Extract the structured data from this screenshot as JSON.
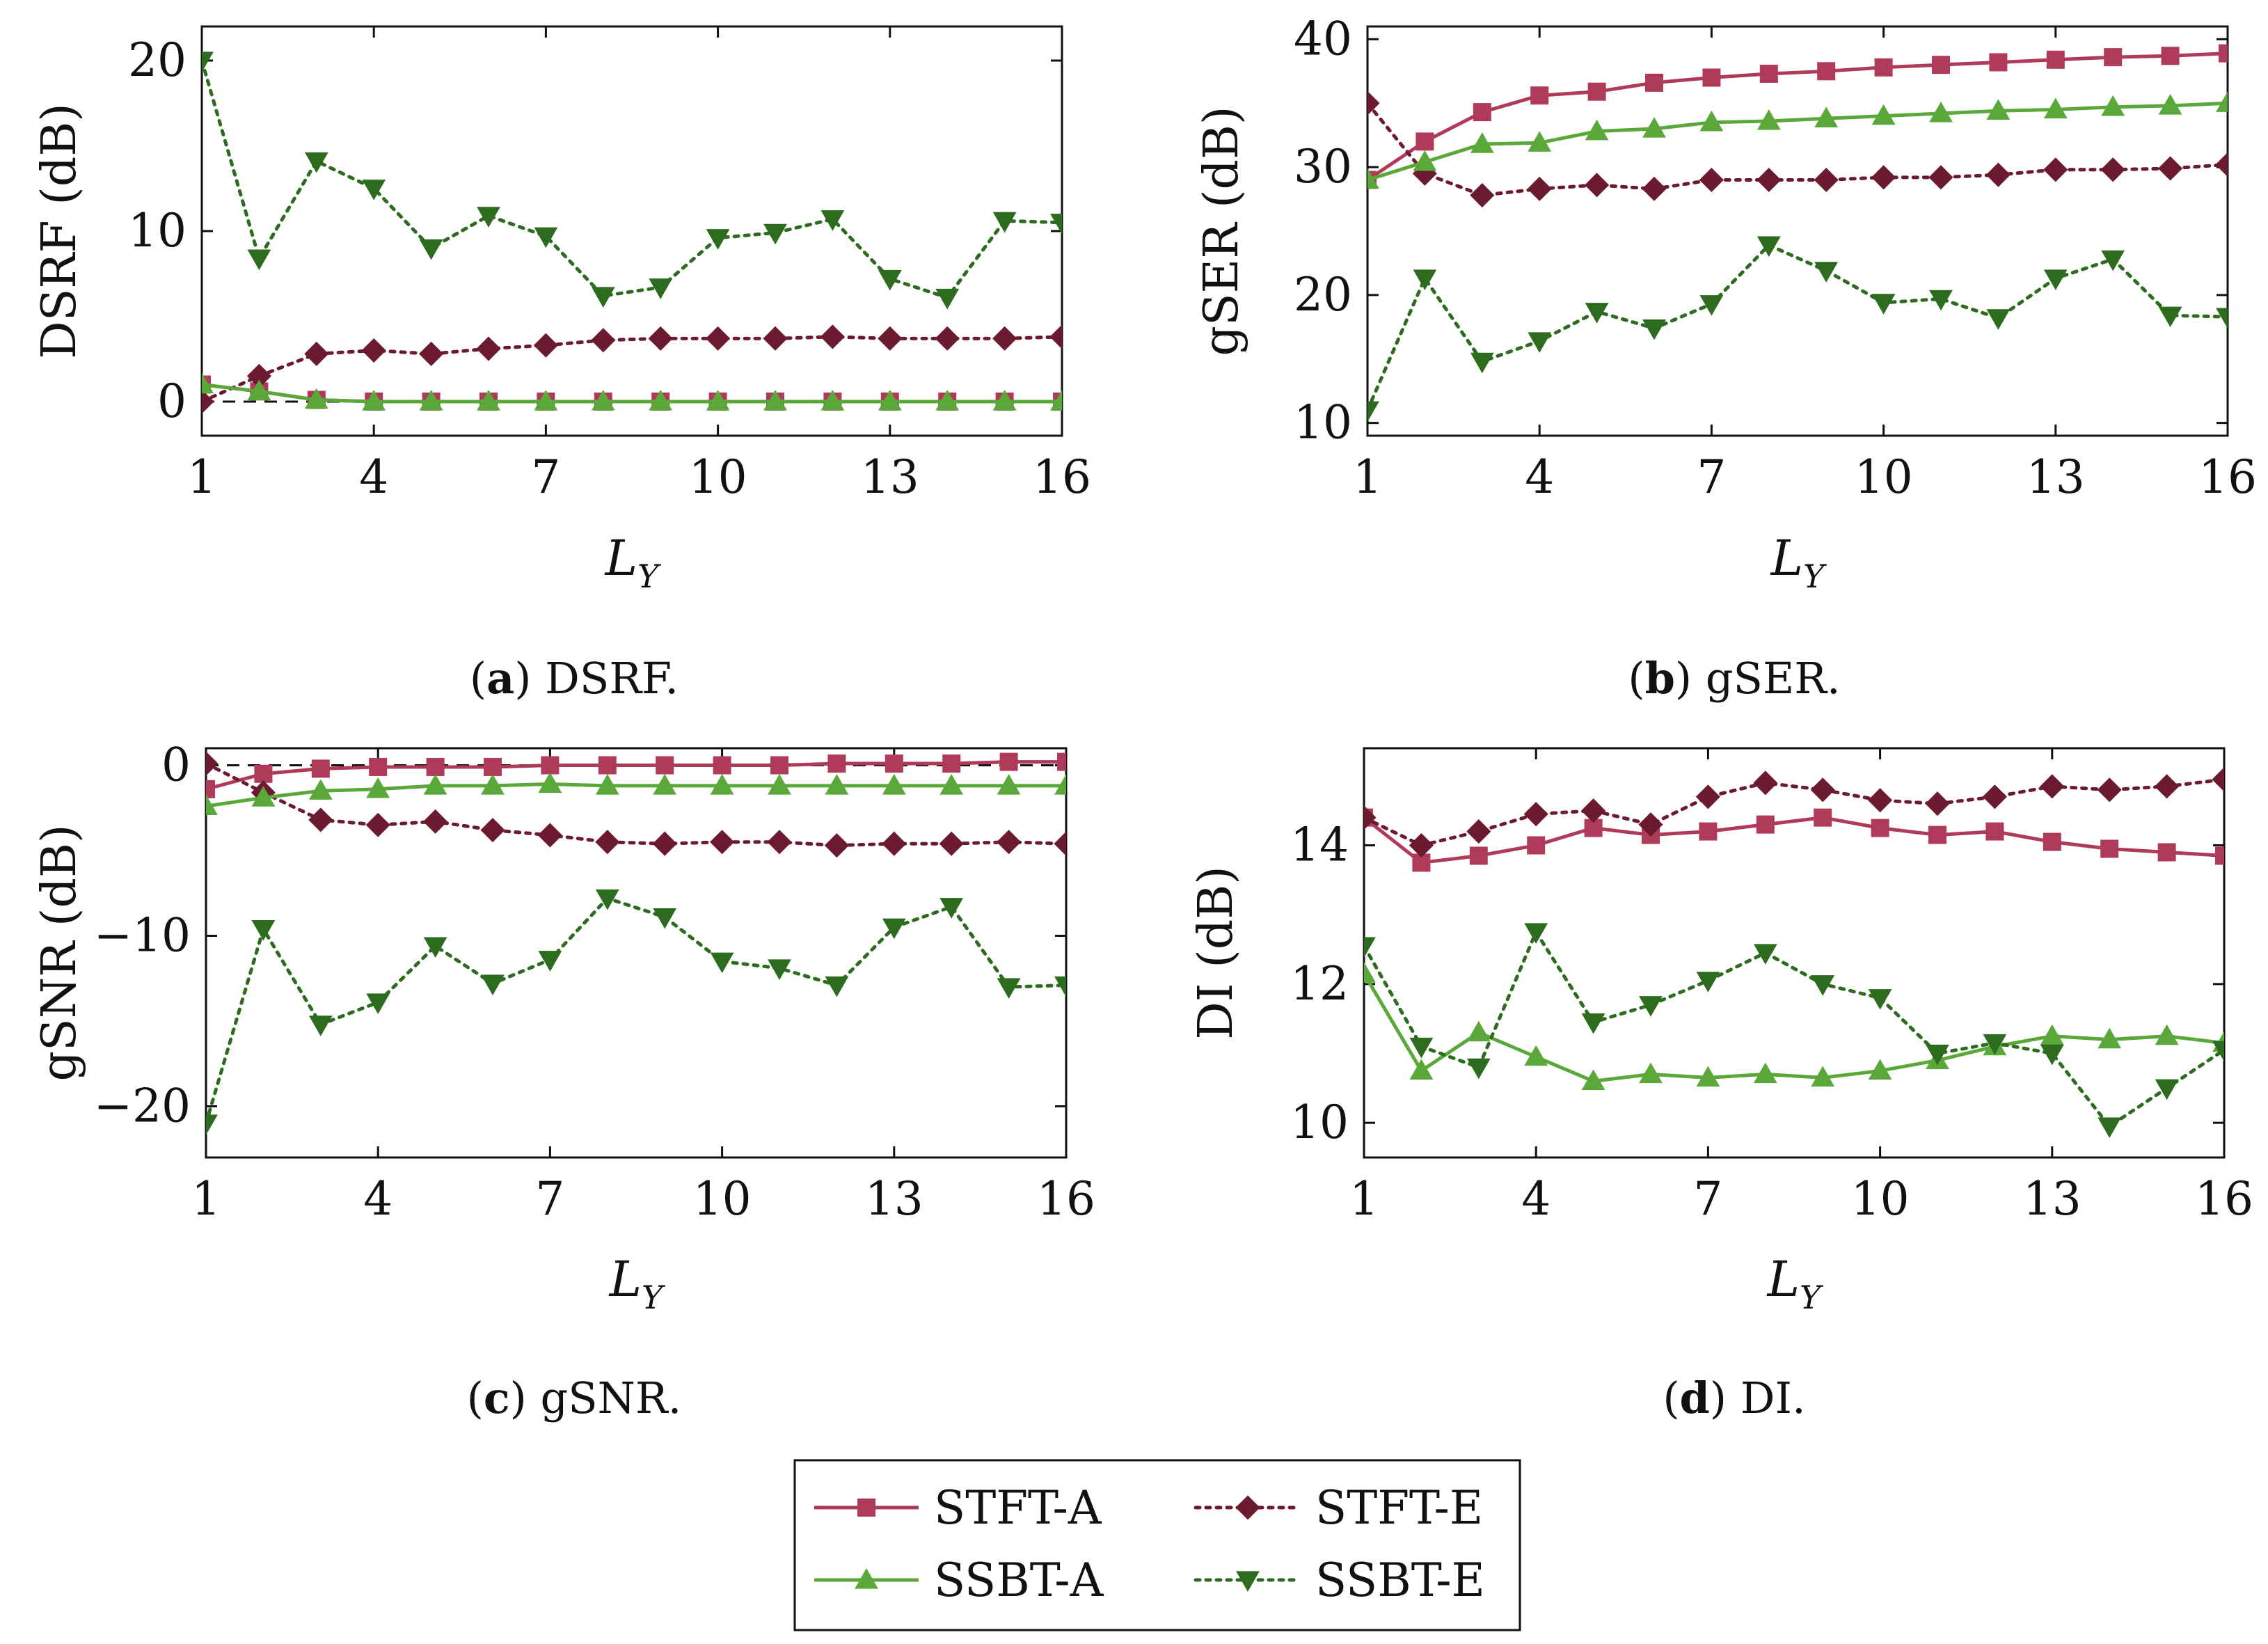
{
  "colors": {
    "stft_a": "#b03a59",
    "stft_e": "#6b1a30",
    "ssbt_a": "#5aa83a",
    "ssbt_e": "#2d6b1f"
  },
  "legend": {
    "items": [
      {
        "key": "stft_a",
        "label": "STFT-A"
      },
      {
        "key": "stft_e",
        "label": "STFT-E"
      },
      {
        "key": "ssbt_a",
        "label": "SSBT-A"
      },
      {
        "key": "ssbt_e",
        "label": "SSBT-E"
      }
    ]
  },
  "chart_data": [
    {
      "type": "line",
      "panel": "a",
      "caption_letter": "a",
      "caption_text": ") DSRF.",
      "caption_open": "(",
      "ylabel": "DSRF (dB)",
      "xlabel_main": "L",
      "xlabel_sub": "Y",
      "xlim": [
        1,
        16
      ],
      "ylim": [
        -2,
        22
      ],
      "xticks": [
        1,
        4,
        7,
        10,
        13,
        16
      ],
      "xtick_labels": [
        "1",
        "4",
        "7",
        "10",
        "13",
        "16"
      ],
      "yticks": [
        0,
        10,
        20
      ],
      "ytick_labels": [
        "0",
        "10",
        "20"
      ],
      "reference_line": 0,
      "x": [
        1,
        2,
        3,
        4,
        5,
        6,
        7,
        8,
        9,
        10,
        11,
        12,
        13,
        14,
        15,
        16
      ],
      "series": [
        {
          "name": "STFT-A",
          "key": "stft_a",
          "marker": "square",
          "style": "solid",
          "values": [
            1,
            0.6,
            0.1,
            0,
            0,
            0,
            0,
            0,
            0,
            0,
            0,
            0,
            0,
            0,
            0,
            0
          ]
        },
        {
          "name": "STFT-E",
          "key": "stft_e",
          "marker": "diamond",
          "style": "dotted",
          "values": [
            0,
            1.5,
            2.8,
            3,
            2.8,
            3.1,
            3.3,
            3.6,
            3.7,
            3.7,
            3.7,
            3.8,
            3.7,
            3.7,
            3.7,
            3.8
          ]
        },
        {
          "name": "SSBT-A",
          "key": "ssbt_a",
          "marker": "triangle-up",
          "style": "solid",
          "values": [
            1,
            0.6,
            0.1,
            0,
            0,
            0,
            0,
            0,
            0,
            0,
            0,
            0,
            0,
            0,
            0,
            0
          ]
        },
        {
          "name": "SSBT-E",
          "key": "ssbt_e",
          "marker": "triangle-down",
          "style": "dotted",
          "values": [
            20,
            8.4,
            14.1,
            12.5,
            9,
            10.9,
            9.7,
            6.2,
            6.7,
            9.6,
            9.9,
            10.7,
            7.2,
            6.1,
            10.6,
            10.5
          ]
        }
      ]
    },
    {
      "type": "line",
      "panel": "b",
      "caption_letter": "b",
      "caption_text": ") gSER.",
      "caption_open": "(",
      "ylabel": "gSER (dB)",
      "xlabel_main": "L",
      "xlabel_sub": "Y",
      "xlim": [
        1,
        16
      ],
      "ylim": [
        9,
        41
      ],
      "xticks": [
        1,
        4,
        7,
        10,
        13,
        16
      ],
      "xtick_labels": [
        "1",
        "4",
        "7",
        "10",
        "13",
        "16"
      ],
      "yticks": [
        10,
        20,
        30,
        40
      ],
      "ytick_labels": [
        "10",
        "20",
        "30",
        "40"
      ],
      "x": [
        1,
        2,
        3,
        4,
        5,
        6,
        7,
        8,
        9,
        10,
        11,
        12,
        13,
        14,
        15,
        16
      ],
      "series": [
        {
          "name": "STFT-A",
          "key": "stft_a",
          "marker": "square",
          "style": "solid",
          "values": [
            29,
            32,
            34.3,
            35.6,
            35.9,
            36.6,
            37,
            37.3,
            37.5,
            37.8,
            38,
            38.2,
            38.4,
            38.6,
            38.7,
            38.9
          ]
        },
        {
          "name": "STFT-E",
          "key": "stft_e",
          "marker": "diamond",
          "style": "dotted",
          "values": [
            35,
            29.5,
            27.8,
            28.3,
            28.6,
            28.3,
            29,
            29,
            29,
            29.2,
            29.2,
            29.4,
            29.8,
            29.8,
            29.9,
            30.2
          ]
        },
        {
          "name": "SSBT-A",
          "key": "ssbt_a",
          "marker": "triangle-up",
          "style": "solid",
          "values": [
            29,
            30.4,
            31.8,
            31.9,
            32.8,
            33,
            33.5,
            33.6,
            33.8,
            34,
            34.2,
            34.4,
            34.5,
            34.7,
            34.8,
            35
          ]
        },
        {
          "name": "SSBT-E",
          "key": "ssbt_e",
          "marker": "triangle-down",
          "style": "dotted",
          "values": [
            11,
            21.3,
            14.8,
            16.4,
            18.7,
            17.4,
            19.3,
            23.9,
            21.9,
            19.4,
            19.7,
            18.2,
            21.3,
            22.8,
            18.4,
            18.3
          ]
        }
      ]
    },
    {
      "type": "line",
      "panel": "c",
      "caption_letter": "c",
      "caption_text": ") gSNR.",
      "caption_open": "(",
      "ylabel": "gSNR (dB)",
      "xlabel_main": "L",
      "xlabel_sub": "Y",
      "xlim": [
        1,
        16
      ],
      "ylim": [
        -23,
        1
      ],
      "xticks": [
        1,
        4,
        7,
        10,
        13,
        16
      ],
      "xtick_labels": [
        "1",
        "4",
        "7",
        "10",
        "13",
        "16"
      ],
      "yticks": [
        -20,
        -10,
        0
      ],
      "ytick_labels": [
        "−20",
        "−10",
        "0"
      ],
      "reference_line": 0,
      "x": [
        1,
        2,
        3,
        4,
        5,
        6,
        7,
        8,
        9,
        10,
        11,
        12,
        13,
        14,
        15,
        16
      ],
      "series": [
        {
          "name": "STFT-A",
          "key": "stft_a",
          "marker": "square",
          "style": "solid",
          "values": [
            -1.4,
            -0.5,
            -0.2,
            -0.1,
            -0.1,
            -0.1,
            0,
            0,
            0,
            0,
            0,
            0.1,
            0.1,
            0.1,
            0.2,
            0.2
          ]
        },
        {
          "name": "STFT-E",
          "key": "stft_e",
          "marker": "diamond",
          "style": "dotted",
          "values": [
            0.1,
            -1.6,
            -3.2,
            -3.5,
            -3.3,
            -3.8,
            -4.1,
            -4.5,
            -4.6,
            -4.5,
            -4.5,
            -4.7,
            -4.6,
            -4.6,
            -4.5,
            -4.6
          ]
        },
        {
          "name": "SSBT-A",
          "key": "ssbt_a",
          "marker": "triangle-up",
          "style": "solid",
          "values": [
            -2.4,
            -1.9,
            -1.5,
            -1.4,
            -1.2,
            -1.2,
            -1.1,
            -1.2,
            -1.2,
            -1.2,
            -1.2,
            -1.2,
            -1.2,
            -1.2,
            -1.2,
            -1.2
          ]
        },
        {
          "name": "SSBT-E",
          "key": "ssbt_e",
          "marker": "triangle-down",
          "style": "dotted",
          "values": [
            -21,
            -9.6,
            -15.2,
            -13.9,
            -10.6,
            -12.8,
            -11.4,
            -7.8,
            -8.9,
            -11.5,
            -11.9,
            -12.9,
            -9.5,
            -8.3,
            -13,
            -12.9
          ]
        }
      ]
    },
    {
      "type": "line",
      "panel": "d",
      "caption_letter": "d",
      "caption_text": ") DI.",
      "caption_open": "(",
      "ylabel": "DI (dB)",
      "xlabel_main": "L",
      "xlabel_sub": "Y",
      "xlim": [
        1,
        16
      ],
      "ylim": [
        9.5,
        15.4
      ],
      "xticks": [
        1,
        4,
        7,
        10,
        13,
        16
      ],
      "xtick_labels": [
        "1",
        "4",
        "7",
        "10",
        "13",
        "16"
      ],
      "yticks": [
        10,
        12,
        14
      ],
      "ytick_labels": [
        "10",
        "12",
        "14"
      ],
      "x": [
        1,
        2,
        3,
        4,
        5,
        6,
        7,
        8,
        9,
        10,
        11,
        12,
        13,
        14,
        15,
        16
      ],
      "series": [
        {
          "name": "STFT-A",
          "key": "stft_a",
          "marker": "square",
          "style": "solid",
          "values": [
            14.4,
            13.75,
            13.85,
            14,
            14.25,
            14.15,
            14.2,
            14.3,
            14.4,
            14.25,
            14.15,
            14.2,
            14.05,
            13.95,
            13.9,
            13.85
          ]
        },
        {
          "name": "STFT-E",
          "key": "stft_e",
          "marker": "diamond",
          "style": "dotted",
          "values": [
            14.4,
            14,
            14.2,
            14.45,
            14.5,
            14.3,
            14.7,
            14.9,
            14.8,
            14.65,
            14.6,
            14.7,
            14.85,
            14.8,
            14.85,
            14.95
          ]
        },
        {
          "name": "SSBT-A",
          "key": "ssbt_a",
          "marker": "triangle-up",
          "style": "solid",
          "values": [
            12.15,
            10.75,
            11.3,
            10.95,
            10.6,
            10.7,
            10.65,
            10.7,
            10.65,
            10.75,
            10.9,
            11.1,
            11.25,
            11.2,
            11.25,
            11.15
          ]
        },
        {
          "name": "SSBT-E",
          "key": "ssbt_e",
          "marker": "triangle-down",
          "style": "dotted",
          "values": [
            12.55,
            11.1,
            10.8,
            12.75,
            11.45,
            11.7,
            12.05,
            12.45,
            12,
            11.8,
            11,
            11.15,
            11,
            9.95,
            10.5,
            11.05
          ]
        }
      ]
    }
  ]
}
